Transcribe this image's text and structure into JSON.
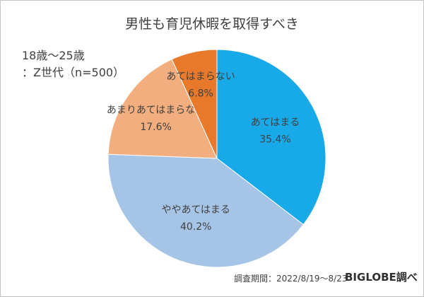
{
  "chart_data": {
    "type": "pie",
    "title": "男性も育児休暇を取得すべき",
    "subtitle_line1": "18歳～25歳",
    "subtitle_line2": "：Z世代（n=500）",
    "slices": [
      {
        "label": "あてはまる",
        "value": 35.4,
        "value_label": "35.4%",
        "color": "#17a9e8"
      },
      {
        "label": "ややあてはまる",
        "value": 40.2,
        "value_label": "40.2%",
        "color": "#a6c5e6"
      },
      {
        "label": "あまりあてはまらない",
        "value": 17.6,
        "value_label": "17.6%",
        "color": "#f2ae7e"
      },
      {
        "label": "あてはまらない",
        "value": 6.8,
        "value_label": "6.8%",
        "color": "#e8792b"
      }
    ],
    "start": "12 o'clock",
    "direction": "clockwise"
  },
  "footer": {
    "survey_period": "調査期間：2022/8/19～8/23",
    "source": "BIGLOBE調べ"
  }
}
